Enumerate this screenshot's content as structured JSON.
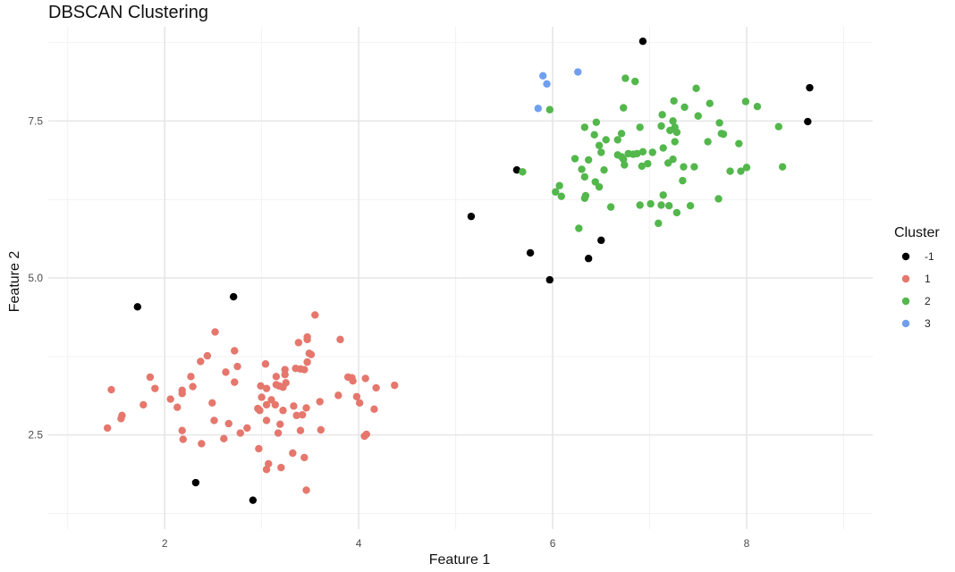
{
  "chart_data": {
    "type": "scatter",
    "title": "DBSCAN Clustering",
    "xlabel": "Feature 1",
    "ylabel": "Feature 2",
    "xlim": [
      0.8,
      9.3
    ],
    "ylim": [
      1.0,
      9.0
    ],
    "x_ticks": [
      2,
      4,
      6,
      8
    ],
    "x_tick_labels": [
      "2",
      "4",
      "6",
      "8"
    ],
    "y_ticks": [
      2.5,
      5.0,
      7.5
    ],
    "y_tick_labels": [
      "2.5",
      "5.0",
      "7.5"
    ],
    "grid": true,
    "legend": {
      "title": "Cluster",
      "placement": "right"
    },
    "series": [
      {
        "name": "-1",
        "color": "#000000",
        "points": [
          [
            6.93,
            8.77
          ],
          [
            8.65,
            8.03
          ],
          [
            8.63,
            7.49
          ],
          [
            5.63,
            6.72
          ],
          [
            5.16,
            5.98
          ],
          [
            6.5,
            5.6
          ],
          [
            5.77,
            5.4
          ],
          [
            6.37,
            5.31
          ],
          [
            5.97,
            4.97
          ],
          [
            1.72,
            4.54
          ],
          [
            2.71,
            4.7
          ],
          [
            2.32,
            1.74
          ],
          [
            2.91,
            1.46
          ]
        ]
      },
      {
        "name": "1",
        "color": "#E5776D",
        "points": [
          [
            3.55,
            4.41
          ],
          [
            2.52,
            4.14
          ],
          [
            3.47,
            4.06
          ],
          [
            3.81,
            4.02
          ],
          [
            3.47,
            4.02
          ],
          [
            3.38,
            3.97
          ],
          [
            2.72,
            3.84
          ],
          [
            2.44,
            3.76
          ],
          [
            3.49,
            3.8
          ],
          [
            3.51,
            3.78
          ],
          [
            2.37,
            3.67
          ],
          [
            3.47,
            3.66
          ],
          [
            3.04,
            3.63
          ],
          [
            2.75,
            3.59
          ],
          [
            3.35,
            3.56
          ],
          [
            3.4,
            3.55
          ],
          [
            3.44,
            3.54
          ],
          [
            3.24,
            3.54
          ],
          [
            2.63,
            3.5
          ],
          [
            3.24,
            3.46
          ],
          [
            2.27,
            3.43
          ],
          [
            3.15,
            3.43
          ],
          [
            3.89,
            3.42
          ],
          [
            1.85,
            3.42
          ],
          [
            3.93,
            3.41
          ],
          [
            4.07,
            3.4
          ],
          [
            3.94,
            3.36
          ],
          [
            2.72,
            3.34
          ],
          [
            3.25,
            3.33
          ],
          [
            3.15,
            3.3
          ],
          [
            3.18,
            3.28
          ],
          [
            2.99,
            3.28
          ],
          [
            4.37,
            3.29
          ],
          [
            2.29,
            3.27
          ],
          [
            4.18,
            3.25
          ],
          [
            3.22,
            3.26
          ],
          [
            1.9,
            3.24
          ],
          [
            3.05,
            3.24
          ],
          [
            1.45,
            3.22
          ],
          [
            2.18,
            3.21
          ],
          [
            2.18,
            3.16
          ],
          [
            3.79,
            3.13
          ],
          [
            3.0,
            3.1
          ],
          [
            3.98,
            3.11
          ],
          [
            2.06,
            3.07
          ],
          [
            3.1,
            3.06
          ],
          [
            3.6,
            3.03
          ],
          [
            4.01,
            3.01
          ],
          [
            2.49,
            3.01
          ],
          [
            1.78,
            2.98
          ],
          [
            3.05,
            2.98
          ],
          [
            3.14,
            2.98
          ],
          [
            3.33,
            2.96
          ],
          [
            2.13,
            2.94
          ],
          [
            3.46,
            2.93
          ],
          [
            2.96,
            2.92
          ],
          [
            4.16,
            2.91
          ],
          [
            3.22,
            2.89
          ],
          [
            2.98,
            2.89
          ],
          [
            3.36,
            2.81
          ],
          [
            1.56,
            2.81
          ],
          [
            3.42,
            2.82
          ],
          [
            1.55,
            2.76
          ],
          [
            3.05,
            2.73
          ],
          [
            2.51,
            2.73
          ],
          [
            2.66,
            2.68
          ],
          [
            3.19,
            2.67
          ],
          [
            1.41,
            2.61
          ],
          [
            2.85,
            2.61
          ],
          [
            3.61,
            2.58
          ],
          [
            2.18,
            2.57
          ],
          [
            3.4,
            2.57
          ],
          [
            2.78,
            2.53
          ],
          [
            3.17,
            2.53
          ],
          [
            4.08,
            2.51
          ],
          [
            4.06,
            2.48
          ],
          [
            2.19,
            2.43
          ],
          [
            2.61,
            2.44
          ],
          [
            2.38,
            2.36
          ],
          [
            2.97,
            2.28
          ],
          [
            3.32,
            2.21
          ],
          [
            3.44,
            2.14
          ],
          [
            3.07,
            2.04
          ],
          [
            3.2,
            1.98
          ],
          [
            3.05,
            1.95
          ],
          [
            3.46,
            1.62
          ]
        ]
      },
      {
        "name": "2",
        "color": "#53B74C",
        "points": [
          [
            6.75,
            8.18
          ],
          [
            6.85,
            8.13
          ],
          [
            7.48,
            8.02
          ],
          [
            7.25,
            7.82
          ],
          [
            7.99,
            7.81
          ],
          [
            7.62,
            7.78
          ],
          [
            8.11,
            7.73
          ],
          [
            7.36,
            7.72
          ],
          [
            6.73,
            7.71
          ],
          [
            5.97,
            7.68
          ],
          [
            7.13,
            7.6
          ],
          [
            7.5,
            7.58
          ],
          [
            7.24,
            7.5
          ],
          [
            6.45,
            7.48
          ],
          [
            7.72,
            7.47
          ],
          [
            7.12,
            7.42
          ],
          [
            6.9,
            7.4
          ],
          [
            7.26,
            7.4
          ],
          [
            8.33,
            7.41
          ],
          [
            6.33,
            7.4
          ],
          [
            7.21,
            7.35
          ],
          [
            7.28,
            7.32
          ],
          [
            7.74,
            7.3
          ],
          [
            7.76,
            7.29
          ],
          [
            6.71,
            7.3
          ],
          [
            6.43,
            7.28
          ],
          [
            6.55,
            7.2
          ],
          [
            6.67,
            7.2
          ],
          [
            7.26,
            7.17
          ],
          [
            7.6,
            7.17
          ],
          [
            7.92,
            7.14
          ],
          [
            6.48,
            7.11
          ],
          [
            7.14,
            7.07
          ],
          [
            6.93,
            7.01
          ],
          [
            7.03,
            7.0
          ],
          [
            6.5,
            7.0
          ],
          [
            6.78,
            6.98
          ],
          [
            6.83,
            6.97
          ],
          [
            6.67,
            6.96
          ],
          [
            6.71,
            6.93
          ],
          [
            6.87,
            6.98
          ],
          [
            6.23,
            6.9
          ],
          [
            6.37,
            6.88
          ],
          [
            7.24,
            6.89
          ],
          [
            6.73,
            6.89
          ],
          [
            7.19,
            6.83
          ],
          [
            6.74,
            6.8
          ],
          [
            6.98,
            6.82
          ],
          [
            6.92,
            6.78
          ],
          [
            7.35,
            6.77
          ],
          [
            7.46,
            6.77
          ],
          [
            8.0,
            6.76
          ],
          [
            8.37,
            6.77
          ],
          [
            6.3,
            6.73
          ],
          [
            6.53,
            6.72
          ],
          [
            7.83,
            6.7
          ],
          [
            7.94,
            6.7
          ],
          [
            5.69,
            6.69
          ],
          [
            6.33,
            6.61
          ],
          [
            7.34,
            6.55
          ],
          [
            6.44,
            6.53
          ],
          [
            6.48,
            6.45
          ],
          [
            6.07,
            6.47
          ],
          [
            6.03,
            6.37
          ],
          [
            7.14,
            6.32
          ],
          [
            6.09,
            6.3
          ],
          [
            6.34,
            6.31
          ],
          [
            6.33,
            6.27
          ],
          [
            7.71,
            6.26
          ],
          [
            7.01,
            6.18
          ],
          [
            7.12,
            6.16
          ],
          [
            6.9,
            6.16
          ],
          [
            7.2,
            6.15
          ],
          [
            7.42,
            6.15
          ],
          [
            6.6,
            6.13
          ],
          [
            7.28,
            6.04
          ],
          [
            7.09,
            5.87
          ],
          [
            6.27,
            5.79
          ]
        ]
      },
      {
        "name": "3",
        "color": "#709FEF",
        "points": [
          [
            6.26,
            8.28
          ],
          [
            5.9,
            8.22
          ],
          [
            5.94,
            8.09
          ],
          [
            5.85,
            7.7
          ]
        ]
      }
    ]
  }
}
